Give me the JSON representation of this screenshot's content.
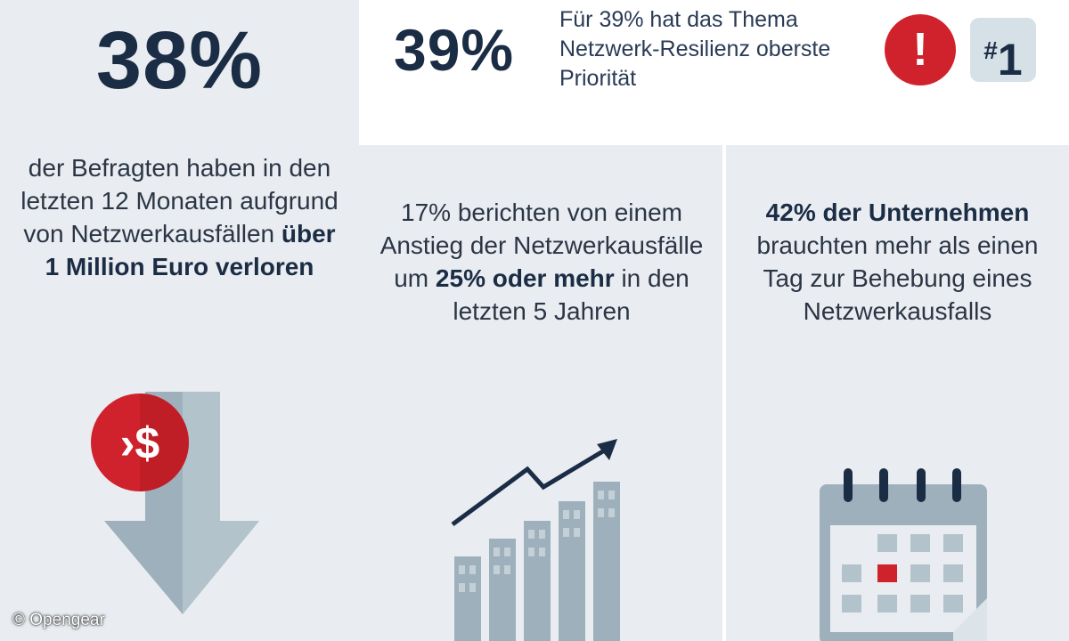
{
  "top": {
    "stat": "39%",
    "text": "Für 39% hat das Thema Netzwerk-Resilienz oberste Priorität",
    "alert_symbol": "!",
    "rank_hash": "#",
    "rank_number": "1"
  },
  "left": {
    "stat": "38%",
    "text_plain": "der Befragten haben in den letzten 12 Monaten aufgrund von Netzwerkausfällen",
    "text_bold": "über 1 Million Euro verloren",
    "icon": "money-loss-arrow-icon",
    "icon_symbol": "›$"
  },
  "middle": {
    "text_before": "17% berichten von einem Anstieg der Netzwerkausfälle um",
    "text_bold": "25% oder mehr",
    "text_after": "in den letzten 5 Jahren",
    "icon": "growth-chart-icon"
  },
  "right": {
    "text_bold": "42% der Unternehmen",
    "text_after": "brauchten mehr als einen Tag zur Behebung eines Netzwerkausfalls",
    "icon": "calendar-icon"
  },
  "credit": "© Opengear",
  "colors": {
    "navy": "#1b2c45",
    "red": "#d0222c",
    "panel": "#e9edf1",
    "icon_grey": "#9eb0bb"
  }
}
